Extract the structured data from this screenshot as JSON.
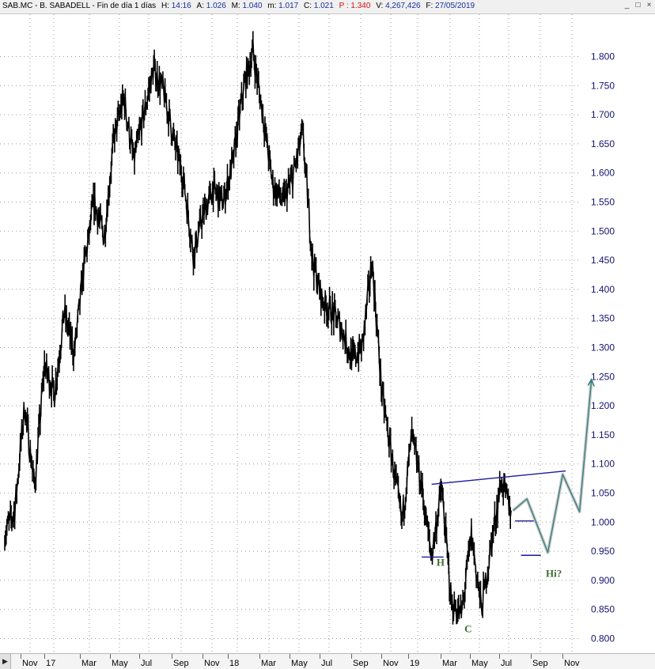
{
  "header": {
    "symbol": "SAB.MC - B. SABADELL - Fin de día 1 días",
    "high_label": "H:",
    "high": "14:16",
    "a_label": "A:",
    "a": "1.026",
    "max_label": "M:",
    "max": "1.040",
    "min_label": "m:",
    "min": "1.017",
    "close_label": "C:",
    "close": "1.021",
    "p_label": "P :",
    "p": "1.340",
    "vol_label": "V:",
    "vol": "4,267,426",
    "date_label": "F:",
    "date": "27/05/2019"
  },
  "window_controls": {
    "minimize": "_",
    "maximize": "□",
    "close": "×"
  },
  "scroll_left_icon": "▶",
  "chart_data": {
    "type": "line",
    "title": "SAB.MC - B. SABADELL",
    "x_months": [
      "Nov",
      "17",
      "Mar",
      "May",
      "Jul",
      "Sep",
      "Nov",
      "18",
      "Mar",
      "May",
      "Jul",
      "Sep",
      "Nov",
      "19",
      "Mar",
      "May",
      "Jul",
      "Sep",
      "Nov"
    ],
    "y_ticks": [
      "1.800",
      "1.750",
      "1.700",
      "1.650",
      "1.600",
      "1.550",
      "1.500",
      "1.450",
      "1.400",
      "1.350",
      "1.300",
      "1.250",
      "1.200",
      "1.150",
      "1.100",
      "1.050",
      "1.000",
      "0.950",
      "0.900",
      "0.850",
      "0.800"
    ],
    "ylim": [
      0.78,
      1.88
    ],
    "grid": "dotted",
    "series": [
      {
        "color": "#000000",
        "points": [
          [
            0,
            0.98
          ],
          [
            1,
            1.02
          ],
          [
            2,
            1.2
          ],
          [
            3,
            1.06
          ],
          [
            4,
            1.27
          ],
          [
            5,
            1.22
          ],
          [
            6,
            1.36
          ],
          [
            7,
            1.29
          ],
          [
            8,
            1.44
          ],
          [
            9,
            1.55
          ],
          [
            10,
            1.49
          ],
          [
            11,
            1.66
          ],
          [
            12,
            1.73
          ],
          [
            13,
            1.62
          ],
          [
            14,
            1.7
          ],
          [
            15,
            1.78
          ],
          [
            16,
            1.74
          ],
          [
            17,
            1.66
          ],
          [
            18,
            1.59
          ],
          [
            19,
            1.46
          ],
          [
            20,
            1.53
          ],
          [
            21,
            1.57
          ],
          [
            22,
            1.55
          ],
          [
            23,
            1.62
          ],
          [
            24,
            1.74
          ],
          [
            25,
            1.81
          ],
          [
            26,
            1.7
          ],
          [
            27,
            1.58
          ],
          [
            28,
            1.55
          ],
          [
            29,
            1.59
          ],
          [
            30,
            1.67
          ],
          [
            31,
            1.45
          ],
          [
            32,
            1.38
          ],
          [
            33,
            1.36
          ],
          [
            34,
            1.33
          ],
          [
            35,
            1.28
          ],
          [
            36,
            1.3
          ],
          [
            37,
            1.45
          ],
          [
            38,
            1.22
          ],
          [
            39,
            1.11
          ],
          [
            40,
            1.0
          ],
          [
            41,
            1.15
          ],
          [
            42,
            1.06
          ],
          [
            43,
            0.94
          ],
          [
            44,
            1.06
          ],
          [
            45,
            0.86
          ],
          [
            46,
            0.84
          ],
          [
            47,
            0.98
          ],
          [
            48,
            0.85
          ],
          [
            49,
            0.96
          ],
          [
            50,
            1.07
          ],
          [
            51,
            1.02
          ]
        ]
      }
    ],
    "annotations": [
      {
        "text": "H",
        "x": 43.5,
        "y": 0.925
      },
      {
        "text": "C",
        "x": 46.3,
        "y": 0.811
      },
      {
        "text": "Hi?",
        "x": 54.5,
        "y": 0.906
      }
    ],
    "lines": [
      {
        "name": "neckline",
        "color": "#1a1a9c",
        "points": [
          [
            43.0,
            1.065
          ],
          [
            56.5,
            1.088
          ]
        ]
      },
      {
        "name": "head-support-left",
        "color": "#1a1a9c",
        "points": [
          [
            42.0,
            0.94
          ],
          [
            44.2,
            0.94
          ]
        ]
      },
      {
        "name": "head-support-right",
        "color": "#1a1a9c",
        "points": [
          [
            52.0,
            0.943
          ],
          [
            54.0,
            0.943
          ]
        ]
      },
      {
        "name": "short-support",
        "color": "#1a1a9c",
        "points": [
          [
            51.4,
            1.002
          ],
          [
            53.5,
            1.002
          ]
        ]
      }
    ],
    "projection": {
      "color": "#3a8080",
      "points": [
        [
          51.2,
          1.02
        ],
        [
          52.6,
          1.04
        ],
        [
          54.7,
          0.948
        ],
        [
          56.2,
          1.082
        ],
        [
          57.9,
          1.018
        ],
        [
          59.1,
          1.245
        ]
      ]
    }
  }
}
